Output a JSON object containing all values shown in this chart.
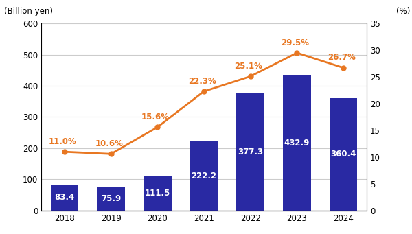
{
  "years": [
    2018,
    2019,
    2020,
    2021,
    2022,
    2023,
    2024
  ],
  "bar_values": [
    83.4,
    75.9,
    111.5,
    222.2,
    377.3,
    432.9,
    360.4
  ],
  "line_values": [
    11.0,
    10.6,
    15.6,
    22.3,
    25.1,
    29.5,
    26.7
  ],
  "bar_color": "#2929a3",
  "line_color": "#e87722",
  "bar_label_color": "#ffffff",
  "line_label_color": "#e87722",
  "left_ylabel": "(Billion yen)",
  "right_ylabel": "(%)",
  "left_ylim": [
    0,
    600
  ],
  "right_ylim": [
    0,
    35.0
  ],
  "left_yticks": [
    0,
    100,
    200,
    300,
    400,
    500,
    600
  ],
  "right_yticks": [
    0.0,
    5.0,
    10.0,
    15.0,
    20.0,
    25.0,
    30.0,
    35.0
  ],
  "bar_label_fontsize": 8.5,
  "line_label_fontsize": 8.5,
  "axis_fontsize": 8.5,
  "grid_color": "#cccccc",
  "background_color": "#ffffff",
  "bar_width": 0.6,
  "xlim": [
    2017.5,
    2024.5
  ]
}
